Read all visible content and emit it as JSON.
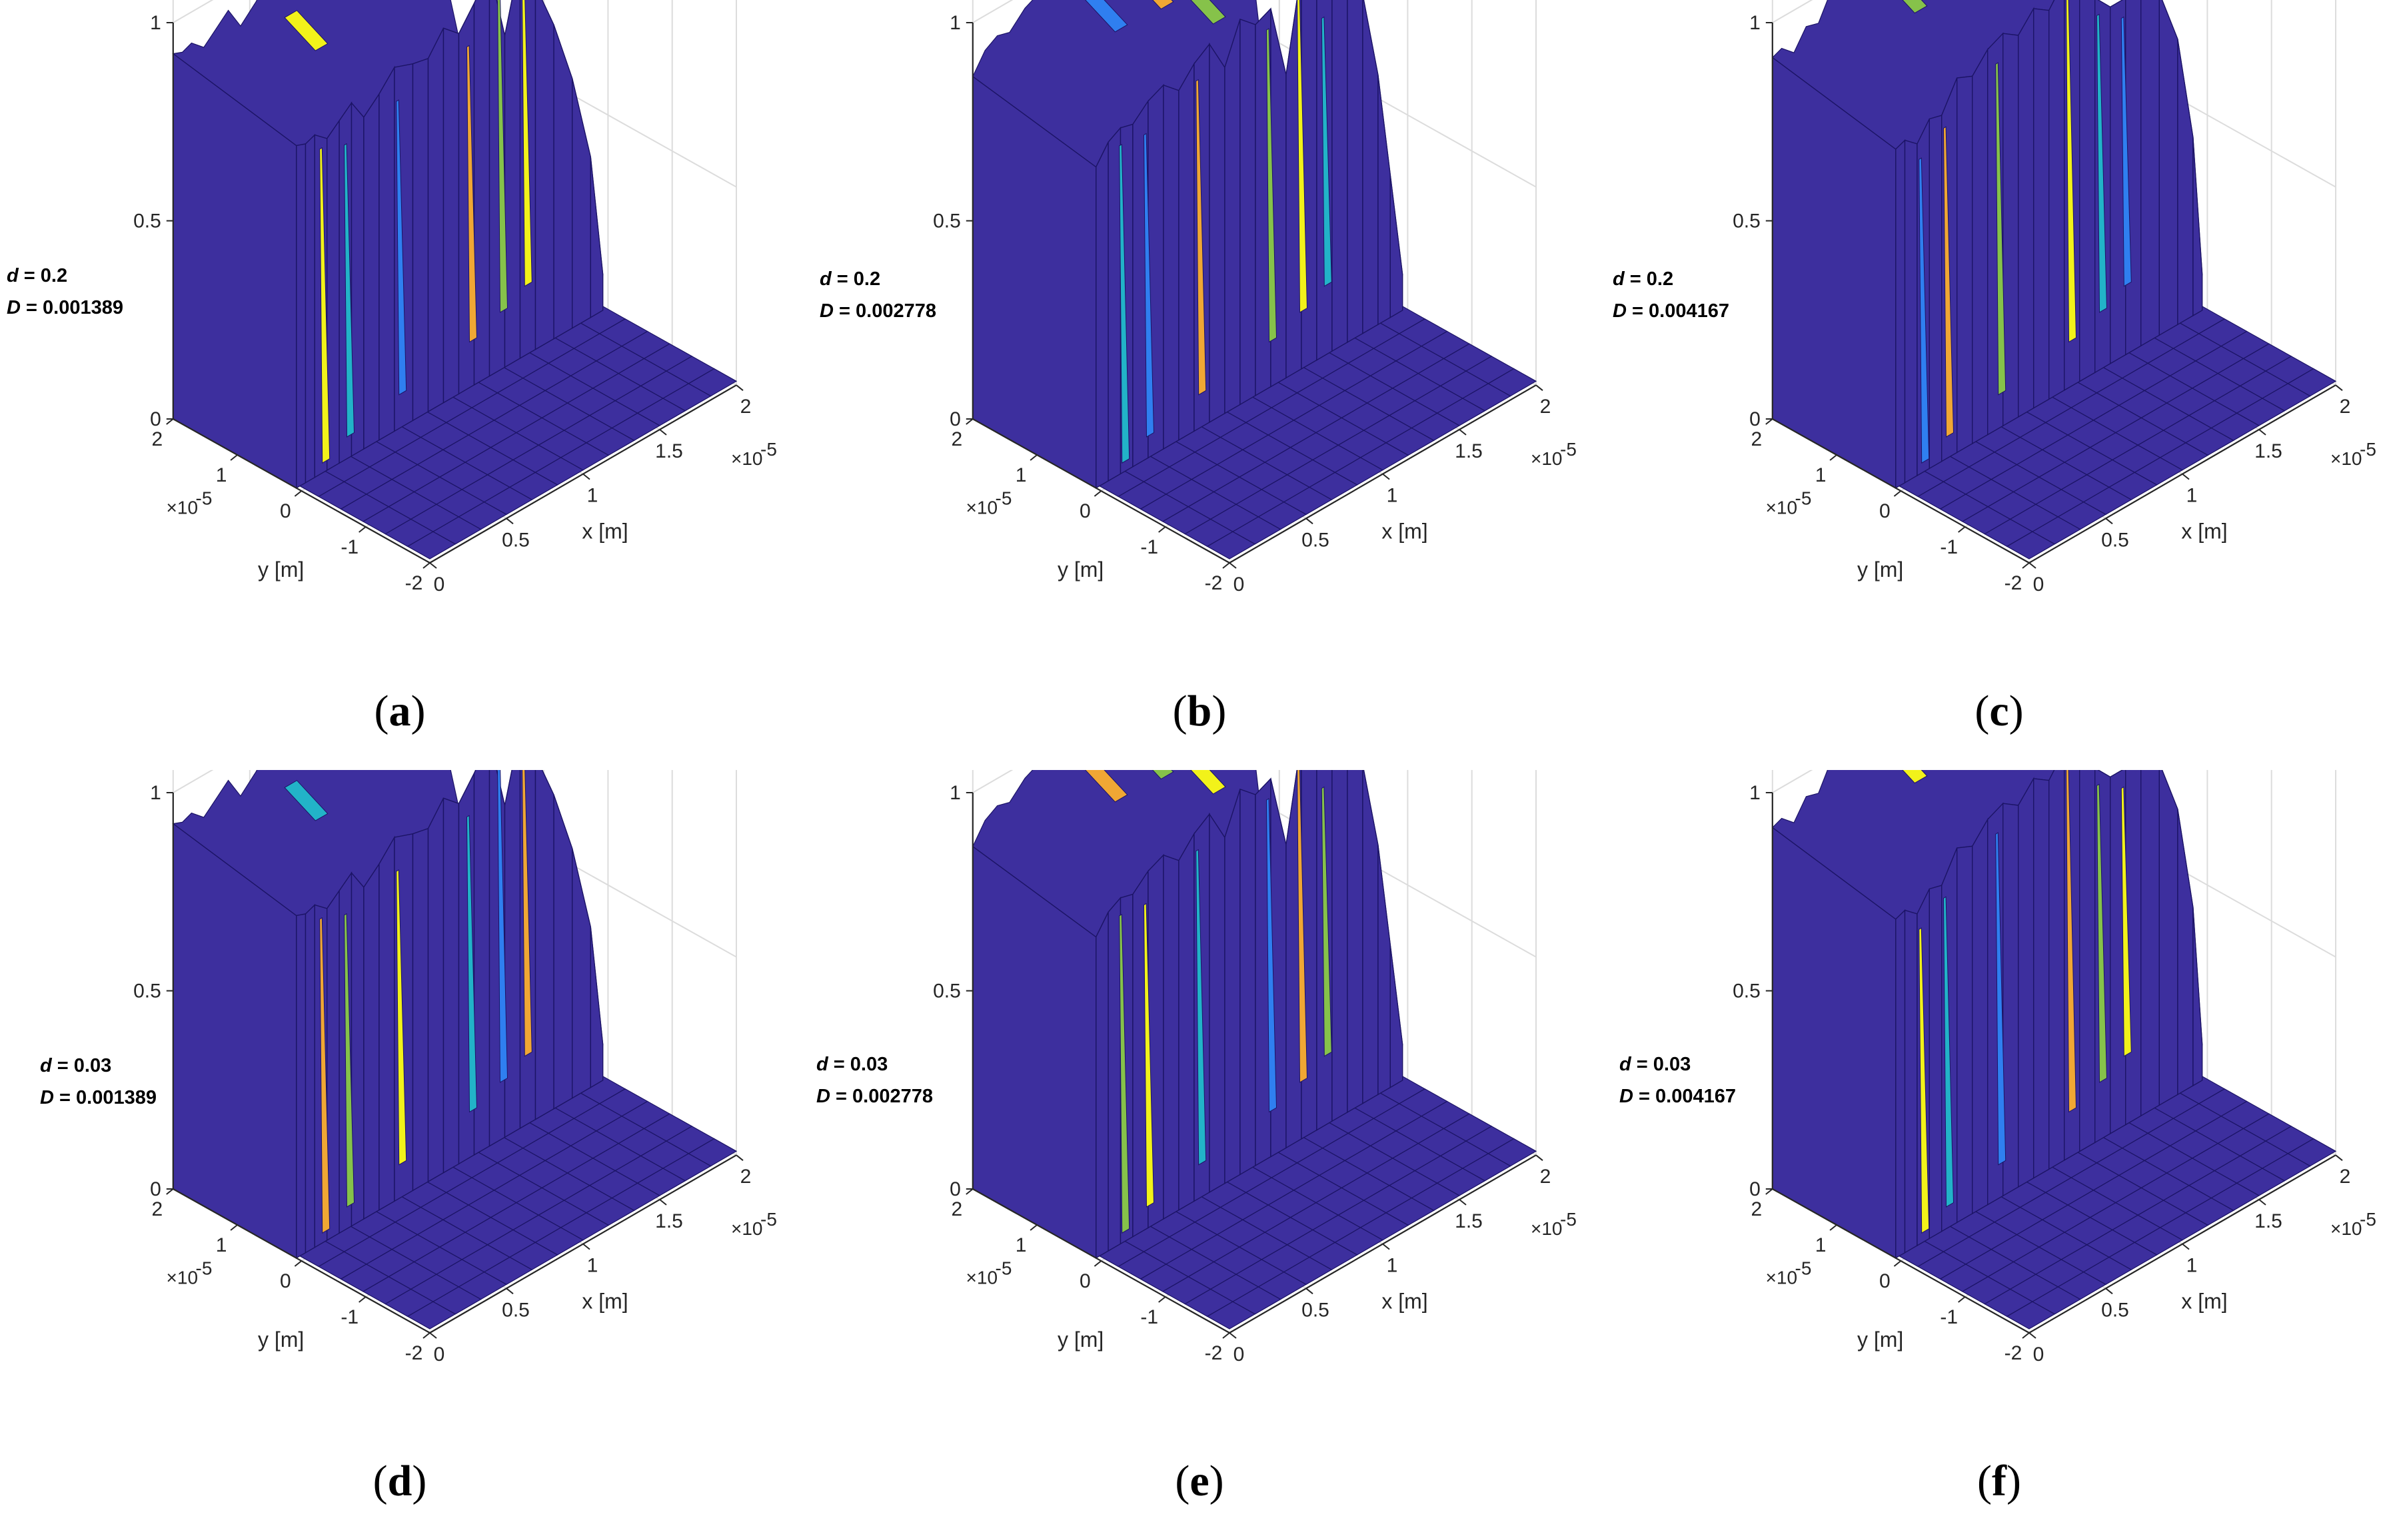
{
  "figure": {
    "colors": {
      "surface": "#3d2f9e",
      "yellow": "#f2f21a",
      "cyan": "#22b3c8",
      "blue": "#2f7ff0",
      "orange": "#f0a734",
      "green": "#86c24a",
      "grid": "#dcdcdc",
      "axis": "#262626"
    }
  },
  "chart_data": [
    {
      "id": "a",
      "type": "surface3d",
      "panel_label": "a",
      "param_d_label": "d",
      "param_d_value": "= 0.2",
      "param_D_label": "D",
      "param_D_value": "= 0.001389",
      "xlabel": "x [m]",
      "ylabel": "y [m]",
      "x_ticks": [
        "0",
        "0.5",
        "1",
        "1.5",
        "2"
      ],
      "y_ticks": [
        "-2",
        "-1",
        "0",
        "1",
        "2"
      ],
      "z_ticks": [
        "0",
        "0.5",
        "1"
      ],
      "x_exponent": "×10",
      "y_exponent": "×10",
      "exponent_power": "-5",
      "xlim": [
        0,
        2e-05
      ],
      "ylim": [
        -2e-05,
        2e-05
      ],
      "zlim": [
        0,
        1
      ],
      "profile_x_fraction": [
        0.0,
        0.03,
        0.06,
        0.1,
        0.14,
        0.18,
        0.22,
        0.27,
        0.32,
        0.38,
        0.43,
        0.48,
        0.53,
        0.58,
        0.63,
        0.68,
        0.73,
        0.78,
        0.84,
        0.9,
        0.96,
        1.0
      ],
      "profile_z": [
        0.96,
        0.95,
        0.96,
        0.93,
        0.96,
        0.99,
        0.93,
        0.97,
        1.02,
        1.0,
        0.99,
        1.05,
        1.01,
        1.07,
        1.14,
        0.93,
        1.12,
        1.02,
        0.88,
        0.7,
        0.45,
        0.1
      ]
    },
    {
      "id": "b",
      "type": "surface3d",
      "panel_label": "b",
      "param_d_label": "d",
      "param_d_value": "= 0.2",
      "param_D_label": "D",
      "param_D_value": "= 0.002778",
      "xlabel": "x [m]",
      "ylabel": "y [m]",
      "x_ticks": [
        "0",
        "0.5",
        "1",
        "1.5",
        "2"
      ],
      "y_ticks": [
        "-2",
        "-1",
        "0",
        "1",
        "2"
      ],
      "z_ticks": [
        "0",
        "0.5",
        "1"
      ],
      "x_exponent": "×10",
      "y_exponent": "×10",
      "exponent_power": "-5",
      "xlim": [
        0,
        2e-05
      ],
      "ylim": [
        -2e-05,
        2e-05
      ],
      "zlim": [
        0,
        1
      ],
      "profile_x_fraction": [
        0.0,
        0.04,
        0.08,
        0.12,
        0.17,
        0.22,
        0.27,
        0.32,
        0.37,
        0.42,
        0.47,
        0.52,
        0.57,
        0.62,
        0.67,
        0.72,
        0.77,
        0.82,
        0.87,
        0.92,
        0.96,
        1.0
      ],
      "profile_z": [
        0.9,
        0.95,
        0.97,
        0.96,
        1.0,
        1.02,
        0.98,
        1.03,
        1.06,
        0.97,
        1.08,
        1.04,
        1.06,
        0.85,
        1.12,
        1.07,
        1.0,
        0.97,
        0.95,
        0.7,
        0.4,
        0.1
      ]
    },
    {
      "id": "c",
      "type": "surface3d",
      "panel_label": "c",
      "param_d_label": "d",
      "param_d_value": "= 0.2",
      "param_D_label": "D",
      "param_D_value": "= 0.004167",
      "xlabel": "x [m]",
      "ylabel": "y [m]",
      "x_ticks": [
        "0",
        "0.5",
        "1",
        "1.5",
        "2"
      ],
      "y_ticks": [
        "-2",
        "-1",
        "0",
        "1",
        "2"
      ],
      "z_ticks": [
        "0",
        "0.5",
        "1"
      ],
      "x_exponent": "×10",
      "y_exponent": "×10",
      "exponent_power": "-5",
      "xlim": [
        0,
        2e-05
      ],
      "ylim": [
        -2e-05,
        2e-05
      ],
      "zlim": [
        0,
        1
      ],
      "profile_x_fraction": [
        0.0,
        0.03,
        0.07,
        0.11,
        0.15,
        0.2,
        0.25,
        0.3,
        0.35,
        0.4,
        0.45,
        0.5,
        0.55,
        0.6,
        0.65,
        0.7,
        0.75,
        0.8,
        0.86,
        0.92,
        0.97,
        1.0
      ],
      "profile_z": [
        0.95,
        0.96,
        0.93,
        0.98,
        0.97,
        1.05,
        1.03,
        1.08,
        1.1,
        1.07,
        1.12,
        1.09,
        1.15,
        1.1,
        1.05,
        1.0,
        1.0,
        0.98,
        0.96,
        0.8,
        0.5,
        0.1
      ]
    },
    {
      "id": "d",
      "type": "surface3d",
      "panel_label": "d",
      "param_d_label": "d",
      "param_d_value": "= 0.03",
      "param_D_label": "D",
      "param_D_value": "= 0.001389",
      "xlabel": "x [m]",
      "ylabel": "y [m]",
      "x_ticks": [
        "0",
        "0.5",
        "1",
        "1.5",
        "2"
      ],
      "y_ticks": [
        "-2",
        "-1",
        "0",
        "1",
        "2"
      ],
      "z_ticks": [
        "0",
        "0.5",
        "1"
      ],
      "x_exponent": "×10",
      "y_exponent": "×10",
      "exponent_power": "-5",
      "xlim": [
        0,
        2e-05
      ],
      "ylim": [
        -2e-05,
        2e-05
      ],
      "zlim": [
        0,
        1
      ],
      "profile_x_fraction": [
        0.0,
        0.03,
        0.06,
        0.1,
        0.14,
        0.18,
        0.22,
        0.27,
        0.32,
        0.38,
        0.43,
        0.48,
        0.53,
        0.58,
        0.63,
        0.68,
        0.73,
        0.78,
        0.84,
        0.9,
        0.96,
        1.0
      ],
      "profile_z": [
        0.96,
        0.95,
        0.96,
        0.93,
        0.96,
        0.99,
        0.93,
        0.97,
        1.02,
        1.0,
        0.99,
        1.05,
        1.01,
        1.07,
        1.14,
        0.93,
        1.12,
        1.02,
        0.88,
        0.7,
        0.45,
        0.1
      ]
    },
    {
      "id": "e",
      "type": "surface3d",
      "panel_label": "e",
      "param_d_label": "d",
      "param_d_value": "= 0.03",
      "param_D_label": "D",
      "param_D_value": "= 0.002778",
      "xlabel": "x [m]",
      "ylabel": "y [m]",
      "x_ticks": [
        "0",
        "0.5",
        "1",
        "1.5",
        "2"
      ],
      "y_ticks": [
        "-2",
        "-1",
        "0",
        "1",
        "2"
      ],
      "z_ticks": [
        "0",
        "0.5",
        "1"
      ],
      "x_exponent": "×10",
      "y_exponent": "×10",
      "exponent_power": "-5",
      "xlim": [
        0,
        2e-05
      ],
      "ylim": [
        -2e-05,
        2e-05
      ],
      "zlim": [
        0,
        1
      ],
      "profile_x_fraction": [
        0.0,
        0.04,
        0.08,
        0.12,
        0.17,
        0.22,
        0.27,
        0.32,
        0.37,
        0.42,
        0.47,
        0.52,
        0.57,
        0.62,
        0.67,
        0.72,
        0.77,
        0.82,
        0.87,
        0.92,
        0.96,
        1.0
      ],
      "profile_z": [
        0.9,
        0.95,
        0.97,
        0.96,
        1.0,
        1.02,
        0.98,
        1.03,
        1.06,
        0.97,
        1.08,
        1.04,
        1.06,
        0.85,
        1.12,
        1.07,
        1.0,
        0.97,
        0.95,
        0.7,
        0.4,
        0.1
      ]
    },
    {
      "id": "f",
      "type": "surface3d",
      "panel_label": "f",
      "param_d_label": "d",
      "param_d_value": "= 0.03",
      "param_D_label": "D",
      "param_D_value": "= 0.004167",
      "xlabel": "x [m]",
      "ylabel": "y [m]",
      "x_ticks": [
        "0",
        "0.5",
        "1",
        "1.5",
        "2"
      ],
      "y_ticks": [
        "-2",
        "-1",
        "0",
        "1",
        "2"
      ],
      "z_ticks": [
        "0",
        "0.5",
        "1"
      ],
      "x_exponent": "×10",
      "y_exponent": "×10",
      "exponent_power": "-5",
      "xlim": [
        0,
        2e-05
      ],
      "ylim": [
        -2e-05,
        2e-05
      ],
      "zlim": [
        0,
        1
      ],
      "profile_x_fraction": [
        0.0,
        0.03,
        0.07,
        0.11,
        0.15,
        0.2,
        0.25,
        0.3,
        0.35,
        0.4,
        0.45,
        0.5,
        0.55,
        0.6,
        0.65,
        0.7,
        0.75,
        0.8,
        0.86,
        0.92,
        0.97,
        1.0
      ],
      "profile_z": [
        0.95,
        0.96,
        0.93,
        0.98,
        0.97,
        1.05,
        1.03,
        1.08,
        1.1,
        1.07,
        1.12,
        1.09,
        1.15,
        1.1,
        1.05,
        1.0,
        1.0,
        0.98,
        0.96,
        0.8,
        0.5,
        0.1
      ]
    }
  ]
}
